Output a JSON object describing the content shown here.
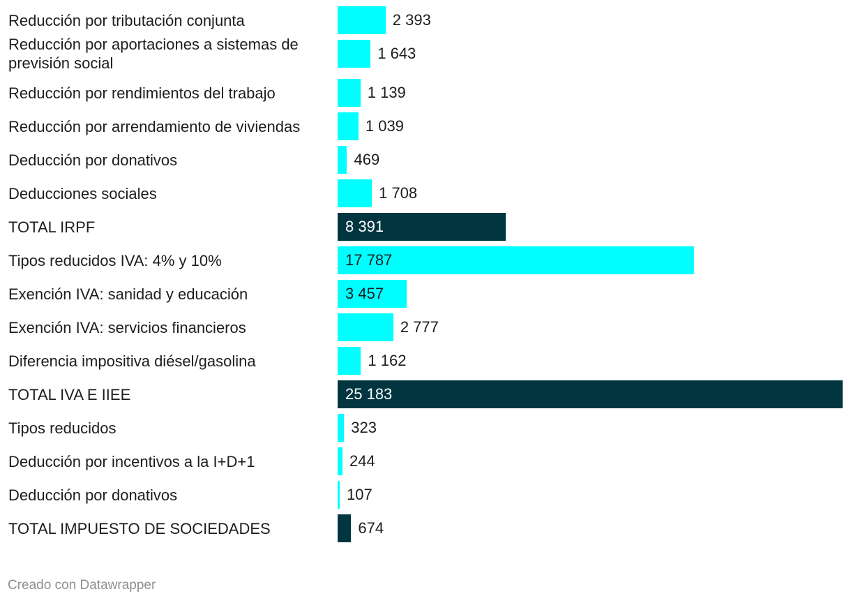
{
  "chart_data": {
    "type": "bar",
    "orientation": "horizontal",
    "title": "",
    "xlabel": "",
    "ylabel": "",
    "xlim": [
      0,
      25183
    ],
    "categories": [
      "Reducción por tributación conjunta",
      "Reducción por aportaciones a sistemas de previsión social",
      "Reducción por rendimientos del trabajo",
      "Reducción por arrendamiento de viviendas",
      "Deducción por donativos",
      "Deducciones sociales",
      "TOTAL IRPF",
      "Tipos reducidos IVA: 4% y 10%",
      "Exención IVA: sanidad y educación",
      "Exención IVA: servicios financieros",
      "Diferencia impositiva diésel/gasolina",
      "TOTAL IVA E IIEE",
      "Tipos reducidos",
      "Deducción por incentivos a la I+D+1",
      "Deducción por donativos",
      "TOTAL IMPUESTO DE SOCIEDADES"
    ],
    "values": [
      2393,
      1643,
      1139,
      1039,
      469,
      1708,
      8391,
      17787,
      3457,
      2777,
      1162,
      25183,
      323,
      244,
      107,
      674
    ],
    "value_labels": [
      "2 393",
      "1 643",
      "1 139",
      "1 039",
      "469",
      "1 708",
      "8 391",
      "17 787",
      "3 457",
      "2 777",
      "1 162",
      "25 183",
      "323",
      "244",
      "107",
      "674"
    ],
    "is_total": [
      false,
      false,
      false,
      false,
      false,
      false,
      true,
      false,
      false,
      false,
      false,
      true,
      false,
      false,
      false,
      true
    ],
    "colors": {
      "item": "#00ffff",
      "total": "#013641",
      "label_dark": "#1d1d1d",
      "label_light": "#ffffff"
    }
  },
  "footer": {
    "credit": "Creado con Datawrapper"
  }
}
